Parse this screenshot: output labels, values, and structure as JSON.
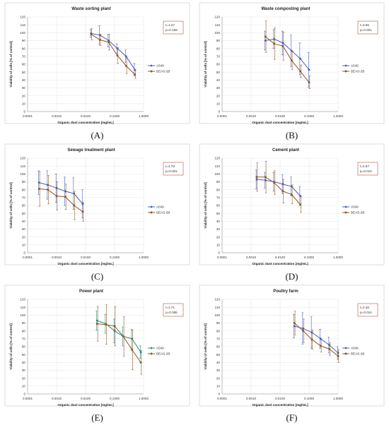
{
  "chart_data": [
    {
      "panel": "(A)",
      "type": "line",
      "title": "Waste sorting plant",
      "xlabel": "Organic dust concentration [mg/mL]",
      "ylabel": "Viability of cells [% of control]",
      "xscale": "log",
      "xlim": [
        0.0001,
        1.0
      ],
      "xticks": [
        "0.0001",
        "0.0010",
        "0.0100",
        "0.1000",
        "1.0000"
      ],
      "ylim": [
        0,
        120
      ],
      "yticks": [
        "0",
        "10",
        "20",
        "30",
        "40",
        "50",
        "60",
        "70",
        "80",
        "90",
        "100",
        "110",
        "120"
      ],
      "grid": true,
      "legend_position": "right",
      "stat": [
        "t=1.37",
        "p=0.169"
      ],
      "series": [
        {
          "name": "A549",
          "color": "#4a5fb0",
          "marker": "diamond",
          "x": [
            0.0156,
            0.03125,
            0.0625,
            0.125,
            0.25,
            0.5
          ],
          "values": [
            99,
            97,
            90,
            80,
            70,
            53
          ],
          "err": [
            5,
            12,
            8,
            6,
            8,
            8
          ]
        },
        {
          "name": "BEAS-2B",
          "color": "#8b5a2b",
          "marker": "circle",
          "x": [
            0.0156,
            0.03125,
            0.0625,
            0.125,
            0.25,
            0.5
          ],
          "values": [
            98,
            91,
            88,
            71,
            58,
            47
          ],
          "err": [
            7,
            7,
            10,
            10,
            10,
            5
          ]
        }
      ]
    },
    {
      "panel": "(B)",
      "type": "line",
      "title": "Waste composting plant",
      "xlabel": "Organic dust concentration [mg/mL]",
      "ylabel": "Viability of cells [% of control]",
      "xscale": "log",
      "xlim": [
        0.0001,
        1.0
      ],
      "xticks": [
        "0.0001",
        "0.0010",
        "0.0100",
        "0.1000",
        "1.0000"
      ],
      "ylim": [
        0,
        120
      ],
      "yticks": [
        "0",
        "10",
        "20",
        "30",
        "40",
        "50",
        "60",
        "70",
        "80",
        "90",
        "100",
        "110",
        "120"
      ],
      "grid": true,
      "legend_position": "right",
      "stat": [
        "t=3.66",
        "p=0.001"
      ],
      "series": [
        {
          "name": "A549",
          "color": "#4a5fb0",
          "marker": "diamond",
          "x": [
            0.003125,
            0.00625,
            0.0125,
            0.025,
            0.05,
            0.1
          ],
          "values": [
            90,
            92,
            87,
            77,
            67,
            53
          ],
          "err": [
            12,
            12,
            15,
            20,
            20,
            22
          ]
        },
        {
          "name": "BEAS-2B",
          "color": "#8b5a2b",
          "marker": "circle",
          "x": [
            0.003125,
            0.00625,
            0.0125,
            0.025,
            0.05,
            0.1
          ],
          "values": [
            95,
            86,
            83,
            65,
            51,
            37
          ],
          "err": [
            20,
            20,
            18,
            12,
            8,
            8
          ]
        }
      ]
    },
    {
      "panel": "(C)",
      "type": "line",
      "title": "Sewage treatment plant",
      "xlabel": "Organic dust concentration [mg/mL]",
      "ylabel": "Viability of cells [% of control]",
      "xscale": "log",
      "xlim": [
        0.0001,
        1.0
      ],
      "xticks": [
        "0.0001",
        "0.0010",
        "0.0100",
        "0.1000",
        "1.0000"
      ],
      "ylim": [
        0,
        120
      ],
      "yticks": [
        "0",
        "10",
        "20",
        "30",
        "40",
        "50",
        "60",
        "70",
        "80",
        "90",
        "100",
        "110",
        "120"
      ],
      "grid": true,
      "legend_position": "right",
      "stat": [
        "t=4.78",
        "p=0.001"
      ],
      "series": [
        {
          "name": "A549",
          "color": "#4a5fb0",
          "marker": "diamond",
          "x": [
            0.00025,
            0.0005,
            0.001,
            0.002,
            0.004,
            0.008
          ],
          "values": [
            89,
            86,
            82,
            78,
            75,
            62
          ],
          "err": [
            15,
            18,
            18,
            18,
            20,
            18
          ]
        },
        {
          "name": "BEAS-2B",
          "color": "#8b5a2b",
          "marker": "circle",
          "x": [
            0.00025,
            0.0005,
            0.001,
            0.002,
            0.004,
            0.008
          ],
          "values": [
            81,
            80,
            72,
            71,
            60,
            52
          ],
          "err": [
            22,
            18,
            18,
            16,
            18,
            12
          ]
        }
      ]
    },
    {
      "panel": "(D)",
      "type": "line",
      "title": "Cement plant",
      "xlabel": "Organic dust concentration [mg/mL]",
      "ylabel": "Viability of cells [% of control]",
      "xscale": "log",
      "xlim": [
        0.0001,
        1.0
      ],
      "xticks": [
        "0.0001",
        "0.0010",
        "0.0100",
        "0.1000",
        "1.0000"
      ],
      "ylim": [
        0,
        120
      ],
      "yticks": [
        "0",
        "10",
        "20",
        "30",
        "40",
        "50",
        "60",
        "70",
        "80",
        "90",
        "100",
        "110",
        "120"
      ],
      "grid": true,
      "legend_position": "right",
      "stat": [
        "t=2.57",
        "p=0.010"
      ],
      "series": [
        {
          "name": "A549",
          "color": "#4a5fb0",
          "marker": "diamond",
          "x": [
            0.0015625,
            0.003125,
            0.00625,
            0.0125,
            0.025,
            0.05
          ],
          "values": [
            93,
            92,
            90,
            87,
            84,
            72
          ],
          "err": [
            12,
            10,
            12,
            12,
            12,
            12
          ]
        },
        {
          "name": "BEAS-2B",
          "color": "#8b5a2b",
          "marker": "circle",
          "x": [
            0.0015625,
            0.003125,
            0.00625,
            0.0125,
            0.025,
            0.05
          ],
          "values": [
            96,
            96,
            89,
            78,
            74,
            61
          ],
          "err": [
            18,
            20,
            15,
            15,
            12,
            10
          ]
        }
      ]
    },
    {
      "panel": "(E)",
      "type": "line",
      "title": "Power plant",
      "xlabel": "Organic dust concentration [mg/mL]",
      "ylabel": "Viability of cells [% of control]",
      "xscale": "log",
      "xlim": [
        0.0001,
        1.0
      ],
      "xticks": [
        "0.0001",
        "0.0010",
        "0.0100",
        "0.1000",
        "1.0000"
      ],
      "ylim": [
        0,
        120
      ],
      "yticks": [
        "0",
        "10",
        "20",
        "30",
        "40",
        "50",
        "60",
        "70",
        "80",
        "90",
        "100",
        "110",
        "120"
      ],
      "grid": true,
      "legend_position": "right",
      "stat": [
        "t=1.71",
        "p=0.086"
      ],
      "series": [
        {
          "name": "A549",
          "color": "#2e8b80",
          "marker": "diamond",
          "x": [
            0.025,
            0.05,
            0.1,
            0.2,
            0.4,
            0.8
          ],
          "values": [
            93,
            89,
            80,
            73,
            70,
            53
          ],
          "err": [
            12,
            12,
            15,
            12,
            12,
            8
          ]
        },
        {
          "name": "BEAS-2B",
          "color": "#8b5a2b",
          "marker": "circle",
          "x": [
            0.025,
            0.05,
            0.1,
            0.2,
            0.4,
            0.8
          ],
          "values": [
            89,
            88,
            86,
            73,
            56,
            40
          ],
          "err": [
            22,
            25,
            25,
            25,
            25,
            15
          ]
        }
      ]
    },
    {
      "panel": "(F)",
      "type": "line",
      "title": "Poultry farm",
      "xlabel": "Organic dust concentration [mg/mL]",
      "ylabel": "Viability of cells [% of control]",
      "xscale": "log",
      "xlim": [
        0.0001,
        1.0
      ],
      "xticks": [
        "0.0001",
        "0.0010",
        "0.0100",
        "0.1000",
        "1.0000"
      ],
      "ylim": [
        0,
        120
      ],
      "yticks": [
        "0",
        "10",
        "20",
        "30",
        "40",
        "50",
        "60",
        "70",
        "80",
        "90",
        "100",
        "110",
        "120"
      ],
      "grid": true,
      "legend_position": "right",
      "stat": [
        "t=2.45",
        "p=0.014"
      ],
      "series": [
        {
          "name": "A549",
          "color": "#4a5fb0",
          "marker": "diamond",
          "x": [
            0.03125,
            0.0625,
            0.125,
            0.25,
            0.5,
            1.0
          ],
          "values": [
            86,
            83,
            78,
            70,
            62,
            52
          ],
          "err": [
            15,
            20,
            20,
            12,
            10,
            8
          ]
        },
        {
          "name": "BEAS-2B",
          "color": "#8b5a2b",
          "marker": "circle",
          "x": [
            0.03125,
            0.0625,
            0.125,
            0.25,
            0.5,
            1.0
          ],
          "values": [
            90,
            80,
            69,
            61,
            57,
            48
          ],
          "err": [
            15,
            15,
            12,
            8,
            8,
            8
          ]
        }
      ]
    }
  ]
}
